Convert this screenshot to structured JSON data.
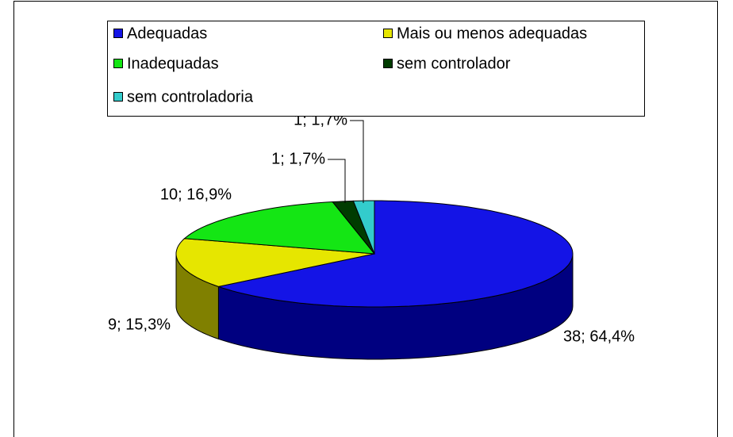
{
  "chart_data": {
    "type": "pie3d",
    "categories": [
      "Adequadas",
      "Mais ou menos adequadas",
      "Inadequadas",
      "sem controlador",
      "sem controladoria"
    ],
    "values": [
      38,
      9,
      10,
      1,
      1
    ],
    "value_labels": [
      "38; 64,4%",
      "9; 15,3%",
      "10; 16,9%",
      "1; 1,7%",
      "1; 1,7%"
    ],
    "colors": [
      "#1414e6",
      "#e6e600",
      "#14e614",
      "#003c00",
      "#33cccc"
    ],
    "side_colors": [
      "#000080",
      "#808000",
      "#008000",
      "#002000",
      "#1a8080"
    ]
  }
}
